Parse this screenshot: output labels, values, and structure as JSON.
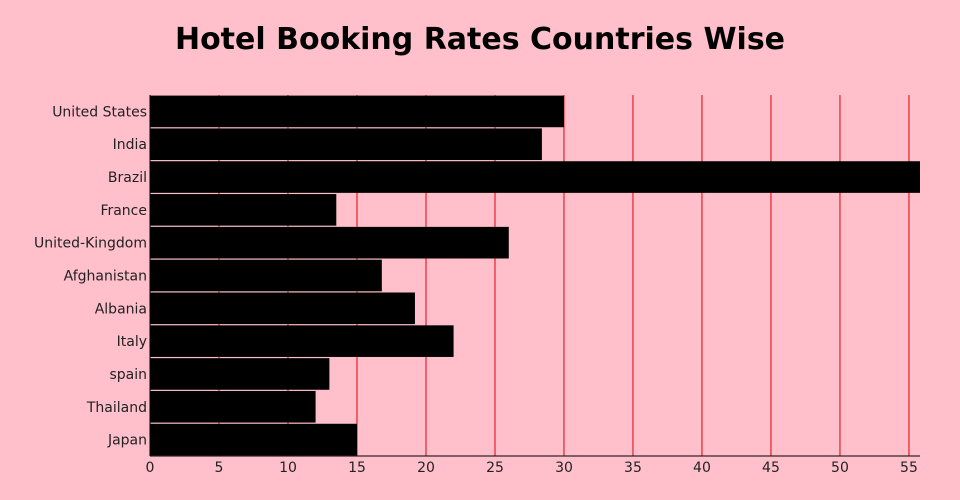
{
  "chart_data": {
    "type": "bar",
    "orientation": "horizontal",
    "title": "Hotel Booking Rates Countries Wise",
    "xlabel": "",
    "ylabel": "",
    "categories": [
      "United States",
      "India",
      "Brazil",
      "France",
      "United-Kingdom",
      "Afghanistan",
      "Albania",
      "Italy",
      "spain",
      "Thailand",
      "Japan"
    ],
    "values": [
      30,
      28.4,
      55.8,
      13.5,
      26,
      16.8,
      19.2,
      22,
      13,
      12,
      15
    ],
    "xlim": [
      0,
      55.8
    ],
    "xticks": [
      "0",
      "5",
      "10",
      "15",
      "20",
      "25",
      "30",
      "35",
      "40",
      "45",
      "50",
      "55"
    ],
    "grid": "vertical",
    "colors": {
      "background": "#FFC0CB",
      "bar": "#000000",
      "gridline": "#E8202A",
      "text": "#222222"
    }
  }
}
